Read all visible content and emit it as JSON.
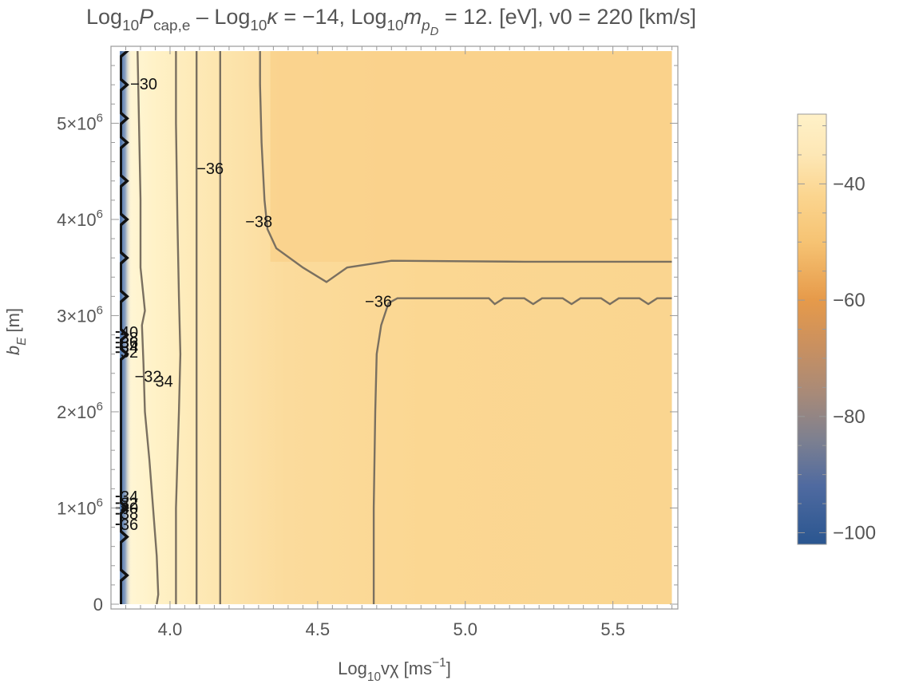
{
  "chart_data": {
    "type": "heatmap",
    "subtype": "contour-density",
    "title": {
      "parts": [
        {
          "t": "Log",
          "style": "normal"
        },
        {
          "t": "10",
          "style": "sub"
        },
        {
          "t": "P",
          "style": "italic"
        },
        {
          "t": "cap,e",
          "style": "sub"
        },
        {
          "t": " – Log",
          "style": "normal"
        },
        {
          "t": "10",
          "style": "sub"
        },
        {
          "t": "κ",
          "style": "italic"
        },
        {
          "t": " = −14, Log",
          "style": "normal"
        },
        {
          "t": "10",
          "style": "sub"
        },
        {
          "t": "m",
          "style": "italic"
        },
        {
          "t": "p",
          "style": "subitalic"
        },
        {
          "t": "D",
          "style": "subsubitalic"
        },
        {
          "t": " = 12. [eV], v0 = 220 [km/s]",
          "style": "normal"
        }
      ]
    },
    "xlabel": {
      "parts": [
        {
          "t": "Log",
          "style": "normal"
        },
        {
          "t": "10",
          "style": "sub"
        },
        {
          "t": "vχ [ms",
          "style": "normal"
        },
        {
          "t": "−1",
          "style": "sup"
        },
        {
          "t": "]",
          "style": "normal"
        }
      ]
    },
    "ylabel": {
      "parts": [
        {
          "t": "b",
          "style": "italic"
        },
        {
          "t": "E",
          "style": "subitalic"
        },
        {
          "t": " [m]",
          "style": "normal"
        }
      ]
    },
    "xlim": [
      3.8,
      5.72
    ],
    "ylim": [
      -50000,
      5800000
    ],
    "x_ticks": [
      {
        "v": 4.0,
        "label": "4.0"
      },
      {
        "v": 4.5,
        "label": "4.5"
      },
      {
        "v": 5.0,
        "label": "5.0"
      },
      {
        "v": 5.5,
        "label": "5.5"
      }
    ],
    "y_ticks": [
      {
        "v": 0,
        "mant": "0",
        "exp": ""
      },
      {
        "v": 1000000,
        "mant": "1×10",
        "exp": "6"
      },
      {
        "v": 2000000,
        "mant": "2×10",
        "exp": "6"
      },
      {
        "v": 3000000,
        "mant": "3×10",
        "exp": "6"
      },
      {
        "v": 4000000,
        "mant": "4×10",
        "exp": "6"
      },
      {
        "v": 5000000,
        "mant": "5×10",
        "exp": "6"
      }
    ],
    "data_extent": {
      "x": [
        3.83,
        5.7
      ],
      "y": [
        0,
        5750000
      ]
    },
    "contours": [
      {
        "level": -32,
        "points": [
          [
            3.955,
            0
          ],
          [
            3.96,
            100000
          ],
          [
            3.955,
            500000
          ],
          [
            3.94,
            1100000
          ],
          [
            3.93,
            1500000
          ],
          [
            3.915,
            2000000
          ],
          [
            3.91,
            2500000
          ],
          [
            3.905,
            2900000
          ],
          [
            3.915,
            3050000
          ],
          [
            3.91,
            3200000
          ],
          [
            3.9,
            3500000
          ],
          [
            3.9,
            4200000
          ],
          [
            3.895,
            5000000
          ],
          [
            3.89,
            5750000
          ]
        ]
      },
      {
        "level": -34,
        "points": [
          [
            4.02,
            0
          ],
          [
            4.02,
            300000
          ],
          [
            4.02,
            1000000
          ],
          [
            4.025,
            1500000
          ],
          [
            4.03,
            2000000
          ],
          [
            4.035,
            2600000
          ],
          [
            4.03,
            3200000
          ],
          [
            4.025,
            4000000
          ],
          [
            4.02,
            5000000
          ],
          [
            4.02,
            5750000
          ]
        ]
      },
      {
        "level": -36,
        "points": [
          [
            4.09,
            0
          ],
          [
            4.09,
            1000000
          ],
          [
            4.09,
            2500000
          ],
          [
            4.09,
            4000000
          ],
          [
            4.09,
            5750000
          ]
        ]
      },
      {
        "level": -38,
        "points": [
          [
            4.17,
            0
          ],
          [
            4.17,
            1500000
          ],
          [
            4.17,
            3000000
          ],
          [
            4.17,
            4500000
          ],
          [
            4.17,
            5750000
          ]
        ]
      },
      {
        "level": -40,
        "points": [
          [
            4.305,
            5750000
          ],
          [
            4.305,
            5400000
          ],
          [
            4.31,
            4800000
          ],
          [
            4.32,
            4200000
          ],
          [
            4.33,
            3900000
          ],
          [
            4.36,
            3700000
          ],
          [
            4.45,
            3500000
          ],
          [
            4.53,
            3350000
          ],
          [
            4.6,
            3500000
          ],
          [
            4.75,
            3570000
          ],
          [
            5.2,
            3560000
          ],
          [
            5.7,
            3560000
          ]
        ]
      },
      {
        "level": -36,
        "points": [
          [
            4.69,
            0
          ],
          [
            4.69,
            1000000
          ],
          [
            4.695,
            2000000
          ],
          [
            4.7,
            2600000
          ],
          [
            4.715,
            2900000
          ],
          [
            4.74,
            3130000
          ],
          [
            4.77,
            3180000
          ],
          [
            5.0,
            3180000
          ],
          [
            5.08,
            3180000
          ],
          [
            5.1,
            3120000
          ],
          [
            5.13,
            3180000
          ],
          [
            5.2,
            3180000
          ],
          [
            5.23,
            3120000
          ],
          [
            5.26,
            3180000
          ],
          [
            5.33,
            3180000
          ],
          [
            5.36,
            3120000
          ],
          [
            5.39,
            3180000
          ],
          [
            5.46,
            3180000
          ],
          [
            5.49,
            3120000
          ],
          [
            5.52,
            3180000
          ],
          [
            5.59,
            3180000
          ],
          [
            5.62,
            3120000
          ],
          [
            5.65,
            3180000
          ],
          [
            5.7,
            3180000
          ]
        ]
      }
    ],
    "contour_labels": [
      {
        "text": "−30",
        "x": 3.865,
        "y": 5410000
      },
      {
        "text": "−36",
        "x": 4.09,
        "y": 4530000
      },
      {
        "text": "−38",
        "x": 4.255,
        "y": 3980000
      },
      {
        "text": "−36",
        "x": 4.66,
        "y": 3150000
      },
      {
        "text": "−32",
        "x": 3.88,
        "y": 2370000
      },
      {
        "text": "34",
        "x": 3.95,
        "y": 2320000
      }
    ],
    "jumbled_labels": [
      {
        "texts": [
          "40",
          "38",
          "36",
          "34",
          "32"
        ],
        "x": 3.832,
        "y_values": [
          2830000,
          2770000,
          2720000,
          2670000,
          2620000
        ]
      },
      {
        "texts": [
          "34",
          "32",
          "40",
          "38",
          "36"
        ],
        "x": 3.832,
        "y_values": [
          1120000,
          1050000,
          1000000,
          940000,
          830000
        ]
      }
    ],
    "colorbar": {
      "range": [
        -102,
        -28
      ],
      "ticks": [
        {
          "v": -40,
          "label": "−40"
        },
        {
          "v": -60,
          "label": "−60"
        },
        {
          "v": -80,
          "label": "−80"
        },
        {
          "v": -100,
          "label": "−100"
        }
      ],
      "gradient": [
        {
          "v": -28,
          "color": "#fff1c8"
        },
        {
          "v": -35,
          "color": "#fde7b5"
        },
        {
          "v": -42,
          "color": "#fbd58f"
        },
        {
          "v": -50,
          "color": "#f6c373"
        },
        {
          "v": -60,
          "color": "#e69a4a"
        },
        {
          "v": -68,
          "color": "#c99060"
        },
        {
          "v": -76,
          "color": "#a88a78"
        },
        {
          "v": -84,
          "color": "#7d8090"
        },
        {
          "v": -92,
          "color": "#4f6aa0"
        },
        {
          "v": -102,
          "color": "#2a5690"
        }
      ]
    },
    "colors": {
      "contour": "#7a7060",
      "edge_contour": "#111111",
      "field_main": "#fbd896",
      "field_light": "#fff5d4",
      "frame": "#999999"
    }
  }
}
